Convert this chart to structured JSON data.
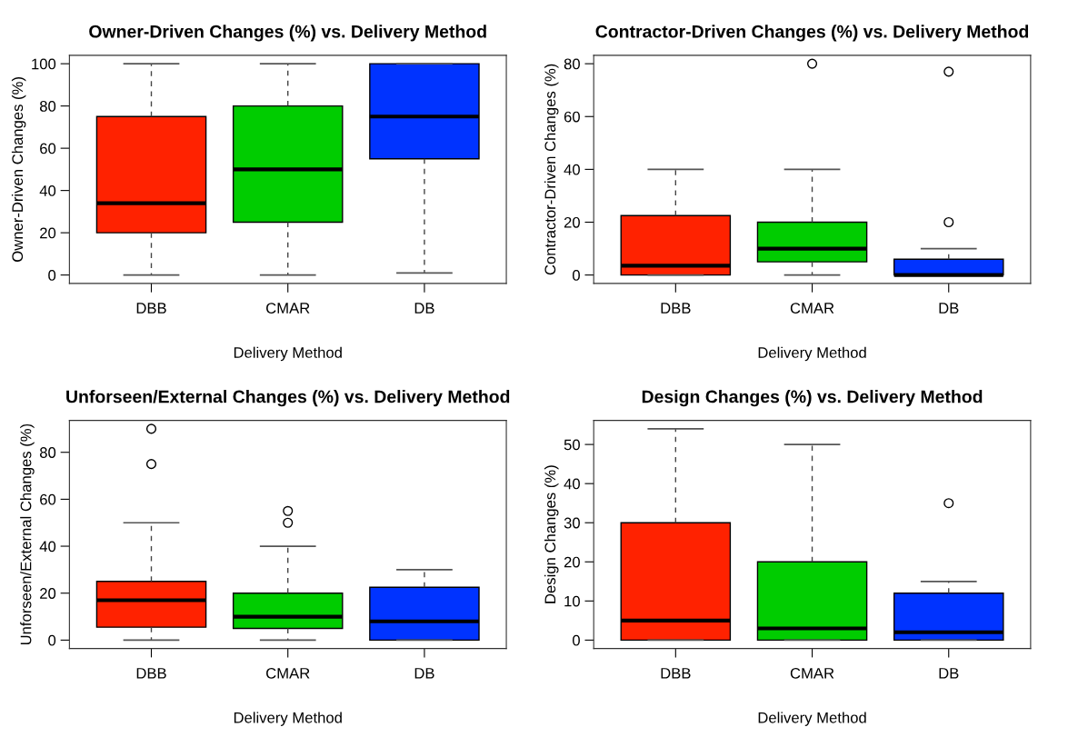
{
  "chart_data": [
    {
      "type": "box",
      "title": "Owner-Driven Changes (%) vs. Delivery Method",
      "xlabel": "Delivery Method",
      "ylabel": "Owner-Driven Changes (%)",
      "categories": [
        "DBB",
        "CMAR",
        "DB"
      ],
      "colors": [
        "#ff2200",
        "#00cc00",
        "#0033ff"
      ],
      "ylim": [
        -4,
        104
      ],
      "yticks": [
        0,
        20,
        40,
        60,
        80,
        100
      ],
      "grid": false,
      "legend": false,
      "boxes": [
        {
          "low": 0,
          "q1": 20,
          "median": 34,
          "q3": 75,
          "high": 100
        },
        {
          "low": 0,
          "q1": 25,
          "median": 50,
          "q3": 80,
          "high": 100
        },
        {
          "low": 1,
          "q1": 55,
          "median": 75,
          "q3": 100,
          "high": 100
        }
      ]
    },
    {
      "type": "box",
      "title": "Contractor-Driven Changes (%) vs. Delivery Method",
      "xlabel": "Delivery Method",
      "ylabel": "Contractor-Driven Changes (%)",
      "categories": [
        "DBB",
        "CMAR",
        "DB"
      ],
      "colors": [
        "#ff2200",
        "#00cc00",
        "#0033ff"
      ],
      "ylim": [
        -3.2,
        83.2
      ],
      "yticks": [
        0,
        20,
        40,
        60,
        80
      ],
      "grid": false,
      "legend": false,
      "boxes": [
        {
          "low": 0,
          "q1": 0,
          "median": 3.5,
          "q3": 22.5,
          "high": 40
        },
        {
          "low": 0,
          "q1": 5,
          "median": 10,
          "q3": 20,
          "high": 40,
          "outliers": [
            80
          ]
        },
        {
          "low": 0,
          "q1": 0,
          "median": 0,
          "q3": 6,
          "high": 10,
          "outliers": [
            20,
            77
          ]
        }
      ]
    },
    {
      "type": "box",
      "title": "Unforseen/External Changes (%) vs. Delivery Method",
      "xlabel": "Delivery Method",
      "ylabel": "Unforseen/External Changes (%)",
      "categories": [
        "DBB",
        "CMAR",
        "DB"
      ],
      "colors": [
        "#ff2200",
        "#00cc00",
        "#0033ff"
      ],
      "ylim": [
        -3.6,
        93.6
      ],
      "yticks": [
        0,
        20,
        40,
        60,
        80
      ],
      "grid": false,
      "legend": false,
      "boxes": [
        {
          "low": 0,
          "q1": 5.5,
          "median": 17,
          "q3": 25,
          "high": 50,
          "outliers": [
            75,
            90
          ]
        },
        {
          "low": 0,
          "q1": 5,
          "median": 10,
          "q3": 20,
          "high": 40,
          "outliers": [
            50,
            55
          ]
        },
        {
          "low": 0,
          "q1": 0,
          "median": 8,
          "q3": 22.5,
          "high": 30
        }
      ]
    },
    {
      "type": "box",
      "title": "Design Changes (%) vs. Delivery Method",
      "xlabel": "Delivery Method",
      "ylabel": "Design Changes (%)",
      "categories": [
        "DBB",
        "CMAR",
        "DB"
      ],
      "colors": [
        "#ff2200",
        "#00cc00",
        "#0033ff"
      ],
      "ylim": [
        -2.16,
        56.16
      ],
      "yticks": [
        0,
        10,
        20,
        30,
        40,
        50
      ],
      "grid": false,
      "legend": false,
      "boxes": [
        {
          "low": 0,
          "q1": 0,
          "median": 5,
          "q3": 30,
          "high": 54
        },
        {
          "low": 0,
          "q1": 0,
          "median": 3,
          "q3": 20,
          "high": 50
        },
        {
          "low": 0,
          "q1": 0,
          "median": 2,
          "q3": 12,
          "high": 15,
          "outliers": [
            35
          ]
        }
      ]
    }
  ]
}
